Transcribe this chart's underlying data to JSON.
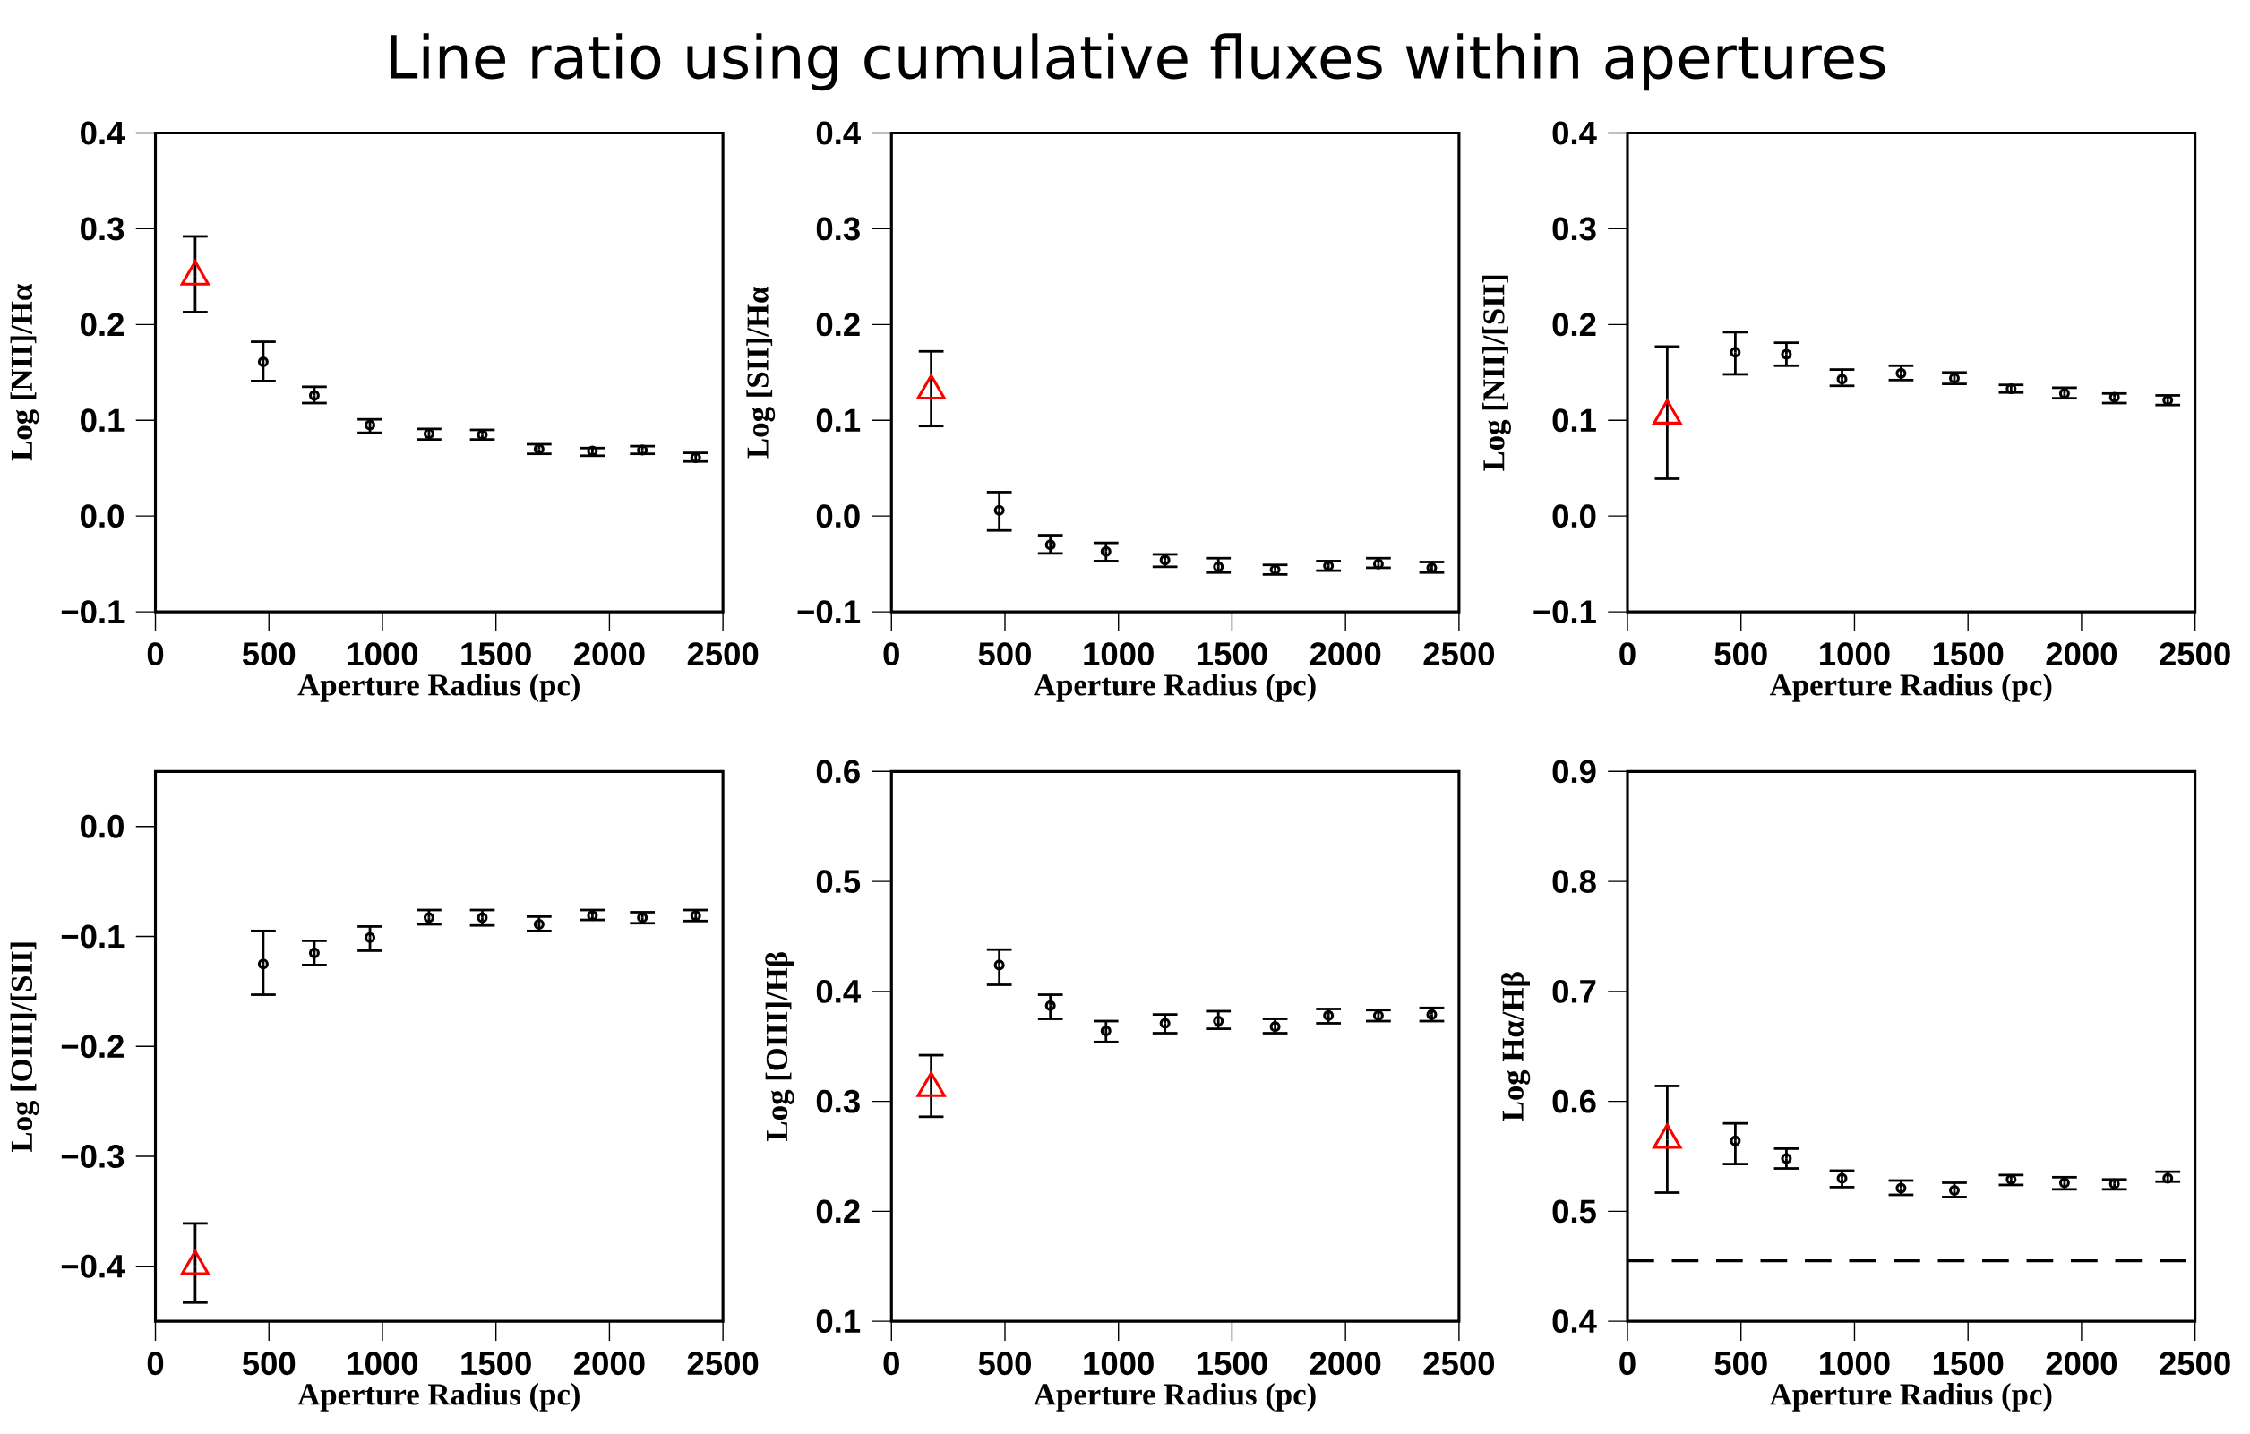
{
  "chart_data": [
    {
      "type": "scatter",
      "title": "Line ratio using cumulative fluxes within apertures",
      "xlabel": "Aperture Radius (pc)",
      "ylabel": "Log [NII]/Hα",
      "xlim": [
        0,
        2500
      ],
      "xticks": [
        0,
        500,
        1000,
        1500,
        2000,
        2500
      ],
      "ylim": [
        -0.1,
        0.4
      ],
      "yticks": [
        {
          "value": -0.1,
          "label": "−0.1"
        },
        {
          "value": 0,
          "label": "0.0"
        },
        0.1,
        0.2,
        0.3,
        0.4
      ],
      "series": [
        {
          "color": "#ff0000",
          "marker": "triangle",
          "x": [
            175
          ],
          "values": [
            0.25
          ],
          "errors": [
            [
              0.213,
              0.292
            ]
          ]
        },
        {
          "color": "#000000",
          "marker": "circle",
          "x": [
            475,
            700,
            945,
            1205,
            1440,
            1690,
            1925,
            2145,
            2380
          ],
          "values": [
            0.161,
            0.126,
            0.095,
            0.086,
            0.085,
            0.07,
            0.068,
            0.069,
            0.061
          ],
          "errors": [
            [
              0.141,
              0.182
            ],
            [
              0.118,
              0.135
            ],
            [
              0.087,
              0.101
            ],
            [
              0.08,
              0.091
            ],
            [
              0.08,
              0.09
            ],
            [
              0.065,
              0.075
            ],
            [
              0.063,
              0.071
            ],
            [
              0.065,
              0.073
            ],
            [
              0.057,
              0.066
            ]
          ]
        }
      ]
    },
    {
      "type": "scatter",
      "xlabel": "Aperture Radius (pc)",
      "ylabel": "Log [SII]/Hα",
      "xlim": [
        0,
        2500
      ],
      "xticks": [
        0,
        500,
        1000,
        1500,
        2000,
        2500
      ],
      "ylim": [
        -0.1,
        0.4
      ],
      "yticks": [
        {
          "value": -0.1,
          "label": "−0.1"
        },
        {
          "value": 0,
          "label": "0.0"
        },
        0.1,
        0.2,
        0.3,
        0.4
      ],
      "series": [
        {
          "color": "#ff0000",
          "marker": "triangle",
          "x": [
            175
          ],
          "values": [
            0.131
          ],
          "errors": [
            [
              0.094,
              0.172
            ]
          ]
        },
        {
          "color": "#000000",
          "marker": "circle",
          "x": [
            475,
            700,
            945,
            1205,
            1440,
            1690,
            1925,
            2145,
            2380
          ],
          "values": [
            0.006,
            -0.03,
            -0.037,
            -0.046,
            -0.053,
            -0.056,
            -0.052,
            -0.05,
            -0.054
          ],
          "errors": [
            [
              -0.015,
              0.025
            ],
            [
              -0.039,
              -0.02
            ],
            [
              -0.047,
              -0.028
            ],
            [
              -0.053,
              -0.04
            ],
            [
              -0.059,
              -0.044
            ],
            [
              -0.061,
              -0.051
            ],
            [
              -0.057,
              -0.047
            ],
            [
              -0.054,
              -0.044
            ],
            [
              -0.059,
              -0.048
            ]
          ]
        }
      ]
    },
    {
      "type": "scatter",
      "xlabel": "Aperture Radius (pc)",
      "ylabel": "Log [NII]/[SII]",
      "xlim": [
        0,
        2500
      ],
      "xticks": [
        0,
        500,
        1000,
        1500,
        2000,
        2500
      ],
      "ylim": [
        -0.1,
        0.4
      ],
      "yticks": [
        {
          "value": -0.1,
          "label": "−0.1"
        },
        {
          "value": 0,
          "label": "0.0"
        },
        0.1,
        0.2,
        0.3,
        0.4
      ],
      "series": [
        {
          "color": "#ff0000",
          "marker": "triangle",
          "x": [
            175
          ],
          "values": [
            0.105
          ],
          "errors": [
            [
              0.039,
              0.177
            ]
          ]
        },
        {
          "color": "#000000",
          "marker": "circle",
          "x": [
            475,
            700,
            945,
            1205,
            1440,
            1690,
            1925,
            2145,
            2380
          ],
          "values": [
            0.171,
            0.169,
            0.143,
            0.149,
            0.144,
            0.133,
            0.128,
            0.124,
            0.121
          ],
          "errors": [
            [
              0.148,
              0.192
            ],
            [
              0.157,
              0.181
            ],
            [
              0.136,
              0.153
            ],
            [
              0.142,
              0.157
            ],
            [
              0.138,
              0.15
            ],
            [
              0.129,
              0.137
            ],
            [
              0.123,
              0.134
            ],
            [
              0.118,
              0.128
            ],
            [
              0.116,
              0.126
            ]
          ]
        }
      ]
    },
    {
      "type": "scatter",
      "xlabel": "Aperture Radius (pc)",
      "ylabel": "Log [OIII]/[SII]",
      "xlim": [
        0,
        2500
      ],
      "xticks": [
        0,
        500,
        1000,
        1500,
        2000,
        2500
      ],
      "ylim": [
        -0.45,
        0.05
      ],
      "yticks": [
        {
          "value": -0.4,
          "label": "−0.4"
        },
        {
          "value": -0.3,
          "label": "−0.3"
        },
        {
          "value": -0.2,
          "label": "−0.2"
        },
        {
          "value": -0.1,
          "label": "−0.1"
        },
        {
          "value": 0,
          "label": "0.0"
        }
      ],
      "series": [
        {
          "color": "#ff0000",
          "marker": "triangle",
          "x": [
            175
          ],
          "values": [
            -0.4
          ],
          "errors": [
            [
              -0.433,
              -0.361
            ]
          ]
        },
        {
          "color": "#000000",
          "marker": "circle",
          "x": [
            475,
            700,
            945,
            1205,
            1440,
            1690,
            1925,
            2145,
            2380
          ],
          "values": [
            -0.125,
            -0.115,
            -0.101,
            -0.083,
            -0.083,
            -0.089,
            -0.081,
            -0.083,
            -0.081
          ],
          "errors": [
            [
              -0.153,
              -0.095
            ],
            [
              -0.126,
              -0.104
            ],
            [
              -0.113,
              -0.091
            ],
            [
              -0.089,
              -0.076
            ],
            [
              -0.09,
              -0.076
            ],
            [
              -0.095,
              -0.082
            ],
            [
              -0.085,
              -0.076
            ],
            [
              -0.088,
              -0.078
            ],
            [
              -0.086,
              -0.076
            ]
          ]
        }
      ]
    },
    {
      "type": "scatter",
      "xlabel": "Aperture Radius (pc)",
      "ylabel": "Log [OIII]/Hβ",
      "xlim": [
        0,
        2500
      ],
      "xticks": [
        0,
        500,
        1000,
        1500,
        2000,
        2500
      ],
      "ylim": [
        0.1,
        0.6
      ],
      "yticks": [
        0.1,
        0.2,
        0.3,
        0.4,
        0.5,
        0.6
      ],
      "series": [
        {
          "color": "#ff0000",
          "marker": "triangle",
          "x": [
            175
          ],
          "values": [
            0.312
          ],
          "errors": [
            [
              0.286,
              0.342
            ]
          ]
        },
        {
          "color": "#000000",
          "marker": "circle",
          "x": [
            475,
            700,
            945,
            1205,
            1440,
            1690,
            1925,
            2145,
            2380
          ],
          "values": [
            0.424,
            0.387,
            0.364,
            0.371,
            0.373,
            0.368,
            0.378,
            0.378,
            0.379
          ],
          "errors": [
            [
              0.406,
              0.438
            ],
            [
              0.375,
              0.397
            ],
            [
              0.354,
              0.373
            ],
            [
              0.362,
              0.379
            ],
            [
              0.366,
              0.382
            ],
            [
              0.362,
              0.375
            ],
            [
              0.371,
              0.384
            ],
            [
              0.373,
              0.383
            ],
            [
              0.373,
              0.385
            ]
          ]
        }
      ]
    },
    {
      "type": "scatter",
      "xlabel": "Aperture Radius (pc)",
      "ylabel": "Log Hα/Hβ",
      "xlim": [
        0,
        2500
      ],
      "xticks": [
        0,
        500,
        1000,
        1500,
        2000,
        2500
      ],
      "ylim": [
        0.4,
        0.9
      ],
      "yticks": [
        0.4,
        0.5,
        0.6,
        0.7,
        0.8,
        0.9
      ],
      "ref_lines": [
        {
          "axis": "y",
          "value": 0.455,
          "line_style": "dashed"
        }
      ],
      "series": [
        {
          "color": "#ff0000",
          "marker": "triangle",
          "x": [
            175
          ],
          "values": [
            0.565
          ],
          "errors": [
            [
              0.517,
              0.614
            ]
          ]
        },
        {
          "color": "#000000",
          "marker": "circle",
          "x": [
            475,
            700,
            945,
            1205,
            1440,
            1690,
            1925,
            2145,
            2380
          ],
          "values": [
            0.564,
            0.548,
            0.53,
            0.521,
            0.519,
            0.529,
            0.526,
            0.525,
            0.53
          ],
          "errors": [
            [
              0.543,
              0.58
            ],
            [
              0.539,
              0.557
            ],
            [
              0.522,
              0.537
            ],
            [
              0.515,
              0.528
            ],
            [
              0.513,
              0.526
            ],
            [
              0.524,
              0.533
            ],
            [
              0.52,
              0.531
            ],
            [
              0.52,
              0.529
            ],
            [
              0.527,
              0.536
            ]
          ]
        }
      ]
    }
  ]
}
